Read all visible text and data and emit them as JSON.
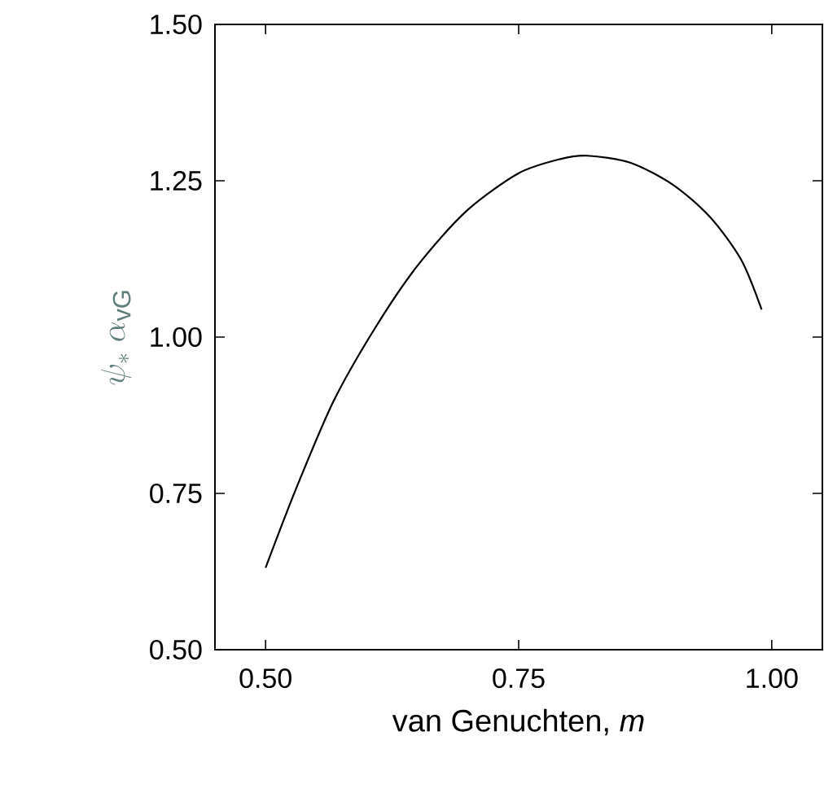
{
  "chart_data": {
    "type": "line",
    "xlabel": "van Genuchten, *m*",
    "ylabel": "\\psi_{*}\\;\\alpha_{\\mathrm{vG}}",
    "xlim": [
      0.45,
      1.05
    ],
    "ylim": [
      0.5,
      1.5
    ],
    "xticks": [
      {
        "value": 0.5,
        "label": "0.50"
      },
      {
        "value": 0.75,
        "label": "0.75"
      },
      {
        "value": 1.0,
        "label": "1.00"
      }
    ],
    "yticks": [
      {
        "value": 0.5,
        "label": "0.50"
      },
      {
        "value": 0.75,
        "label": "0.75"
      },
      {
        "value": 1.0,
        "label": "1.00"
      },
      {
        "value": 1.25,
        "label": "1.25"
      },
      {
        "value": 1.5,
        "label": "1.50"
      }
    ],
    "grid": false,
    "marker": "none",
    "line_style": "solid",
    "series": [
      {
        "color": "#000000",
        "x": [
          0.5,
          0.53,
          0.567,
          0.608,
          0.65,
          0.698,
          0.75,
          0.792,
          0.818,
          0.86,
          0.902,
          0.939,
          0.97,
          0.99
        ],
        "values": [
          0.631,
          0.757,
          0.897,
          1.014,
          1.114,
          1.201,
          1.262,
          1.285,
          1.29,
          1.279,
          1.244,
          1.192,
          1.123,
          1.044
        ]
      }
    ]
  }
}
